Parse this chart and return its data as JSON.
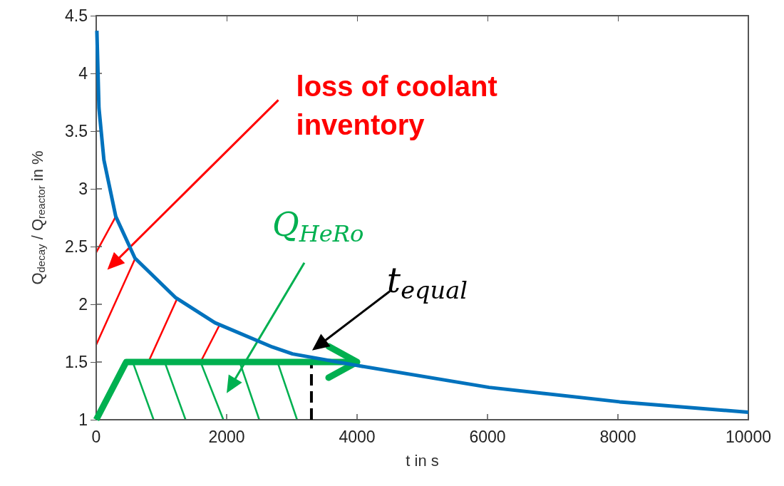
{
  "chart_data": {
    "type": "line",
    "xlabel": "t in s",
    "ylabel": "Q$_{decay}$ / Q$_{reactor}$ in %",
    "xlim": [
      0,
      10000
    ],
    "xticks": [
      0,
      2000,
      4000,
      6000,
      8000,
      10000
    ],
    "ylim": [
      1,
      4.5
    ],
    "yticks": [
      1,
      1.5,
      2,
      2.5,
      3,
      3.5,
      4,
      4.5
    ],
    "grid": false,
    "marker": "none",
    "series": [
      {
        "color": "#0072bd",
        "x": [
          10,
          42,
          118,
          300,
          594,
          1212,
          1820,
          2700,
          3010,
          4000,
          6025,
          8026,
          10000
        ],
        "values": [
          4.37,
          3.7,
          3.25,
          2.76,
          2.4,
          2.06,
          1.84,
          1.63,
          1.57,
          1.47,
          1.28,
          1.155,
          1.065
        ]
      },
      {
        "color": "#00b050",
        "x": [
          0,
          460,
          4000
        ],
        "values": [
          1,
          1.5,
          1.5
        ]
      },
      {
        "color": "#000000",
        "x": [
          3300,
          3300
        ],
        "values": [
          1,
          1.5
        ],
        "line_style": "dashed"
      }
    ],
    "annotations": [
      "loss of coolant inventory",
      "Q$_{HeRo}$",
      "t$_{equal}$"
    ]
  }
}
